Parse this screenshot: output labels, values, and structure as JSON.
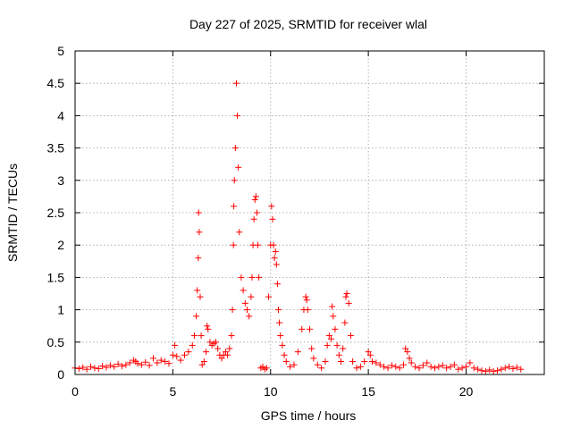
{
  "chart_data": {
    "type": "scatter",
    "title": "Day 227 of 2025, SRMTID for receiver wlal",
    "xlabel": "GPS time / hours",
    "ylabel": "SRMTID / TECUs",
    "xlim": [
      0,
      24
    ],
    "ylim": [
      0,
      5
    ],
    "xticks": [
      0,
      5,
      10,
      15,
      20
    ],
    "xtick_labels": [
      "0",
      "5",
      "10",
      "15",
      "20"
    ],
    "yticks": [
      0,
      0.5,
      1,
      1.5,
      2,
      2.5,
      3,
      3.5,
      4,
      4.5,
      5
    ],
    "ytick_labels": [
      "0",
      "0.5",
      "1",
      "1.5",
      "2",
      "2.5",
      "3",
      "3.5",
      "4",
      "4.5",
      "5"
    ],
    "grid": true,
    "marker": "plus",
    "marker_color": "#ff0000",
    "series": [
      {
        "name": "SRMTID",
        "x": [
          0.0,
          0.2,
          0.4,
          0.6,
          0.8,
          1.0,
          1.2,
          1.4,
          1.6,
          1.8,
          2.0,
          2.2,
          2.4,
          2.6,
          2.8,
          3.0,
          3.1,
          3.2,
          3.4,
          3.6,
          3.8,
          4.0,
          4.2,
          4.4,
          4.6,
          4.8,
          5.0,
          5.1,
          5.2,
          5.4,
          5.6,
          5.8,
          6.0,
          6.1,
          6.2,
          6.25,
          6.3,
          6.32,
          6.35,
          6.4,
          6.45,
          6.5,
          6.6,
          6.7,
          6.75,
          6.8,
          6.9,
          7.0,
          7.1,
          7.2,
          7.3,
          7.4,
          7.5,
          7.6,
          7.7,
          7.8,
          7.9,
          8.0,
          8.05,
          8.1,
          8.12,
          8.15,
          8.2,
          8.25,
          8.3,
          8.35,
          8.4,
          8.5,
          8.6,
          8.7,
          8.8,
          8.9,
          9.0,
          9.05,
          9.1,
          9.15,
          9.2,
          9.25,
          9.3,
          9.35,
          9.4,
          9.5,
          9.6,
          9.7,
          9.8,
          9.9,
          10.0,
          10.05,
          10.1,
          10.15,
          10.2,
          10.25,
          10.3,
          10.35,
          10.4,
          10.45,
          10.5,
          10.6,
          10.7,
          10.8,
          11.0,
          11.2,
          11.4,
          11.6,
          11.7,
          11.8,
          11.85,
          11.9,
          12.0,
          12.1,
          12.2,
          12.4,
          12.6,
          12.8,
          12.9,
          13.0,
          13.1,
          13.15,
          13.2,
          13.3,
          13.4,
          13.5,
          13.6,
          13.7,
          13.8,
          13.85,
          13.9,
          14.0,
          14.1,
          14.2,
          14.4,
          14.6,
          14.8,
          15.0,
          15.1,
          15.2,
          15.4,
          15.6,
          15.8,
          16.0,
          16.2,
          16.4,
          16.6,
          16.8,
          16.9,
          17.0,
          17.1,
          17.2,
          17.4,
          17.6,
          17.8,
          18.0,
          18.2,
          18.4,
          18.6,
          18.8,
          19.0,
          19.2,
          19.4,
          19.6,
          19.8,
          20.0,
          20.2,
          20.4,
          20.6,
          20.8,
          21.0,
          21.2,
          21.4,
          21.6,
          21.8,
          22.0,
          22.2,
          22.4,
          22.6,
          22.8
        ],
        "y": [
          0.1,
          0.09,
          0.11,
          0.08,
          0.12,
          0.1,
          0.09,
          0.13,
          0.11,
          0.14,
          0.12,
          0.16,
          0.13,
          0.15,
          0.18,
          0.22,
          0.2,
          0.17,
          0.15,
          0.19,
          0.14,
          0.25,
          0.18,
          0.22,
          0.2,
          0.17,
          0.3,
          0.45,
          0.28,
          0.22,
          0.3,
          0.35,
          0.45,
          0.6,
          0.9,
          1.3,
          1.8,
          2.5,
          2.2,
          1.2,
          0.6,
          0.15,
          0.2,
          0.35,
          0.75,
          0.7,
          0.5,
          0.45,
          0.48,
          0.5,
          0.4,
          0.3,
          0.25,
          0.3,
          0.35,
          0.3,
          0.4,
          0.6,
          1.0,
          2.0,
          2.6,
          3.0,
          3.5,
          4.5,
          4.0,
          3.2,
          2.2,
          1.5,
          1.3,
          1.1,
          1.0,
          0.9,
          1.2,
          1.5,
          2.0,
          2.4,
          2.7,
          2.75,
          2.5,
          2.0,
          1.5,
          0.1,
          0.12,
          0.08,
          0.1,
          1.2,
          2.0,
          2.6,
          2.4,
          2.0,
          1.8,
          1.9,
          1.7,
          1.4,
          1.0,
          0.8,
          0.6,
          0.45,
          0.3,
          0.2,
          0.12,
          0.15,
          0.35,
          0.7,
          1.0,
          1.2,
          1.15,
          1.0,
          0.7,
          0.4,
          0.25,
          0.15,
          0.1,
          0.2,
          0.45,
          0.6,
          0.55,
          1.05,
          0.9,
          0.7,
          0.45,
          0.3,
          0.2,
          0.4,
          0.8,
          1.2,
          1.25,
          1.1,
          0.6,
          0.2,
          0.1,
          0.12,
          0.2,
          0.35,
          0.3,
          0.2,
          0.18,
          0.15,
          0.12,
          0.1,
          0.14,
          0.12,
          0.1,
          0.15,
          0.4,
          0.35,
          0.25,
          0.18,
          0.12,
          0.1,
          0.14,
          0.18,
          0.12,
          0.1,
          0.12,
          0.14,
          0.1,
          0.12,
          0.15,
          0.08,
          0.1,
          0.12,
          0.18,
          0.1,
          0.08,
          0.06,
          0.05,
          0.07,
          0.05,
          0.06,
          0.08,
          0.1,
          0.12,
          0.09,
          0.11,
          0.08
        ]
      }
    ]
  }
}
